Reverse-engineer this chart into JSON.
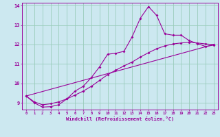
{
  "xlabel": "Windchill (Refroidissement éolien,°C)",
  "xlim": [
    -0.5,
    23.5
  ],
  "ylim": [
    8.65,
    14.15
  ],
  "bg_color": "#cce8f0",
  "line_color": "#990099",
  "grid_color": "#99ccbb",
  "line1_x": [
    0,
    1,
    2,
    3,
    4,
    5,
    6,
    7,
    8,
    9,
    10,
    11,
    12,
    13,
    14,
    15,
    16,
    17,
    18,
    19,
    20,
    21,
    22,
    23
  ],
  "line1_y": [
    9.35,
    9.0,
    8.78,
    8.8,
    8.9,
    9.2,
    9.6,
    9.85,
    10.3,
    10.85,
    11.5,
    11.55,
    11.65,
    12.4,
    13.35,
    13.95,
    13.5,
    12.55,
    12.48,
    12.48,
    12.2,
    12.05,
    11.9,
    11.97
  ],
  "line2_x": [
    0,
    1,
    2,
    3,
    4,
    5,
    6,
    7,
    8,
    9,
    10,
    11,
    12,
    13,
    14,
    15,
    16,
    17,
    18,
    19,
    20,
    21,
    22,
    23
  ],
  "line2_y": [
    9.35,
    9.05,
    8.9,
    8.95,
    9.05,
    9.2,
    9.4,
    9.6,
    9.85,
    10.15,
    10.45,
    10.68,
    10.9,
    11.1,
    11.35,
    11.58,
    11.78,
    11.93,
    12.03,
    12.08,
    12.12,
    12.08,
    12.03,
    12.0
  ],
  "line3_x": [
    0,
    23
  ],
  "line3_y": [
    9.35,
    12.0
  ],
  "yticks": [
    9,
    10,
    11,
    12,
    13,
    14
  ],
  "xticks": [
    0,
    1,
    2,
    3,
    4,
    5,
    6,
    7,
    8,
    9,
    10,
    11,
    12,
    13,
    14,
    15,
    16,
    17,
    18,
    19,
    20,
    21,
    22,
    23
  ]
}
